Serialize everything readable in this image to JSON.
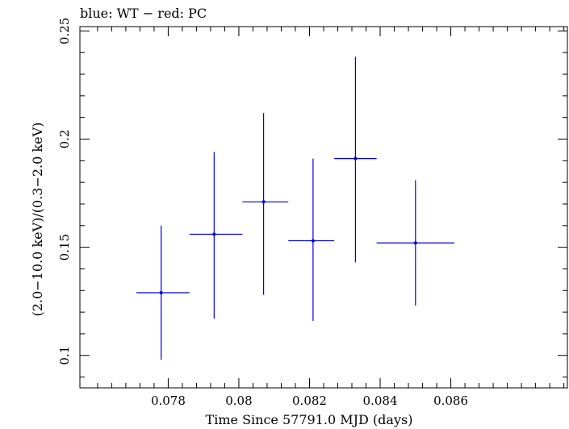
{
  "chart_data": {
    "type": "scatter",
    "title": "blue: WT − red: PC",
    "xlabel": "Time Since 57791.0 MJD (days)",
    "ylabel": "(2.0−10.0 keV)/(0.3−2.0 keV)",
    "xlim": [
      0.0755,
      0.0893
    ],
    "ylim": [
      0.085,
      0.252
    ],
    "xticks": [
      0.078,
      0.08,
      0.082,
      0.084,
      0.086
    ],
    "xtick_labels": [
      "0.078",
      "0.08",
      "0.082",
      "0.084",
      "0.086"
    ],
    "yticks": [
      0.1,
      0.15,
      0.2,
      0.25
    ],
    "ytick_labels": [
      "0.1",
      "0.15",
      "0.2",
      "0.25"
    ],
    "grid": false,
    "series": [
      {
        "color": "#0000dd",
        "points": [
          {
            "x": 0.0778,
            "y": 0.129,
            "x_lo": 0.0771,
            "x_hi": 0.0786,
            "y_lo": 0.098,
            "y_hi": 0.16
          },
          {
            "x": 0.0793,
            "y": 0.156,
            "x_lo": 0.0786,
            "x_hi": 0.0801,
            "y_lo": 0.117,
            "y_hi": 0.194
          },
          {
            "x": 0.0807,
            "y": 0.171,
            "x_lo": 0.0801,
            "x_hi": 0.0814,
            "y_lo": 0.128,
            "y_hi": 0.212
          },
          {
            "x": 0.0821,
            "y": 0.153,
            "x_lo": 0.0814,
            "x_hi": 0.0827,
            "y_lo": 0.116,
            "y_hi": 0.191
          },
          {
            "x": 0.0833,
            "y": 0.191,
            "x_lo": 0.0827,
            "x_hi": 0.0839,
            "y_lo": 0.143,
            "y_hi": 0.238
          },
          {
            "x": 0.085,
            "y": 0.152,
            "x_lo": 0.0839,
            "x_hi": 0.0861,
            "y_lo": 0.123,
            "y_hi": 0.181
          }
        ]
      }
    ]
  }
}
